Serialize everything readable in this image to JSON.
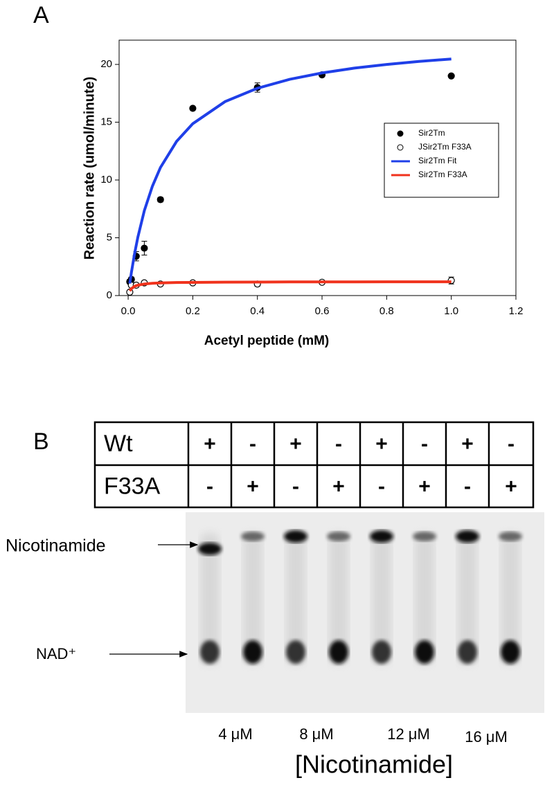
{
  "panels": {
    "a": "A",
    "b": "B"
  },
  "chart_data": {
    "type": "scatter",
    "xlabel": "Acetyl peptide (mM)",
    "ylabel": "Reaction rate (umol/minute)",
    "xlim": [
      -0.028,
      1.2
    ],
    "ylim": [
      0,
      22.1
    ],
    "xticks": [
      {
        "value": 0,
        "label": "0.0"
      },
      0.2,
      0.4,
      0.6,
      0.8,
      {
        "value": 1,
        "label": "1.0"
      },
      1.2
    ],
    "yticks": [
      0,
      5,
      10,
      15,
      20
    ],
    "legend": "right",
    "series": [
      {
        "name": "Sir2Tm",
        "kind": "points",
        "marker": "filled",
        "color": "#000000",
        "x": [
          0.005,
          0.01,
          0.025,
          0.05,
          0.1,
          0.2,
          0.4,
          0.6,
          1
        ],
        "values": [
          1.2,
          1.4,
          3.4,
          4.1,
          8.3,
          16.2,
          18.0,
          19.1,
          19.0
        ],
        "errors": [
          0.2,
          0.2,
          0.4,
          0.6,
          0.2,
          0.1,
          0.4,
          0.1,
          0.1
        ]
      },
      {
        "name": "JSir2Tm F33A",
        "kind": "points",
        "marker": "open",
        "color": "#000000",
        "x": [
          0.005,
          0.01,
          0.025,
          0.05,
          0.1,
          0.2,
          0.4,
          0.6,
          1
        ],
        "values": [
          0.3,
          0.9,
          0.9,
          1.1,
          1.0,
          1.1,
          1.0,
          1.15,
          1.3
        ],
        "errors": [
          0.1,
          0.1,
          0.1,
          0.1,
          0.1,
          0.1,
          0.2,
          0.1,
          0.3
        ]
      },
      {
        "name": "Sir2Tm Fit",
        "kind": "line",
        "color": "#1f3fe8",
        "x": [
          0.005,
          0.01,
          0.02,
          0.03,
          0.05,
          0.075,
          0.1,
          0.15,
          0.2,
          0.3,
          0.4,
          0.5,
          0.6,
          0.7,
          0.8,
          0.9,
          1
        ],
        "values": [
          1.04,
          1.98,
          3.65,
          5.06,
          7.34,
          9.47,
          11.08,
          13.35,
          14.87,
          16.78,
          17.94,
          18.71,
          19.26,
          19.68,
          20.0,
          20.26,
          20.47
        ]
      },
      {
        "name": "Sir2Tm F33A",
        "kind": "line",
        "color": "#f0321c",
        "x": [
          0.005,
          0.01,
          0.02,
          0.03,
          0.05,
          0.075,
          0.1,
          0.15,
          0.2,
          0.3,
          0.4,
          0.5,
          0.6,
          0.7,
          0.8,
          0.9,
          1
        ],
        "values": [
          0.4,
          0.6,
          0.8,
          0.9,
          1.0,
          1.06,
          1.09,
          1.13,
          1.14,
          1.16,
          1.17,
          1.18,
          1.18,
          1.18,
          1.19,
          1.19,
          1.19
        ]
      }
    ]
  },
  "gel": {
    "table": {
      "rows": [
        [
          "Wt",
          "+",
          "-",
          "+",
          "-",
          "+",
          "-",
          "+",
          "-"
        ],
        [
          "F33A",
          "-",
          "+",
          "-",
          "+",
          "-",
          "+",
          "-",
          "+"
        ]
      ]
    },
    "bands": [
      "Nicotinamide",
      "NAD⁺"
    ],
    "concentrations": [
      "4 μM",
      "8 μM",
      "12 μM",
      "16 μM"
    ],
    "xlabel": "[Nicotinamide]"
  }
}
